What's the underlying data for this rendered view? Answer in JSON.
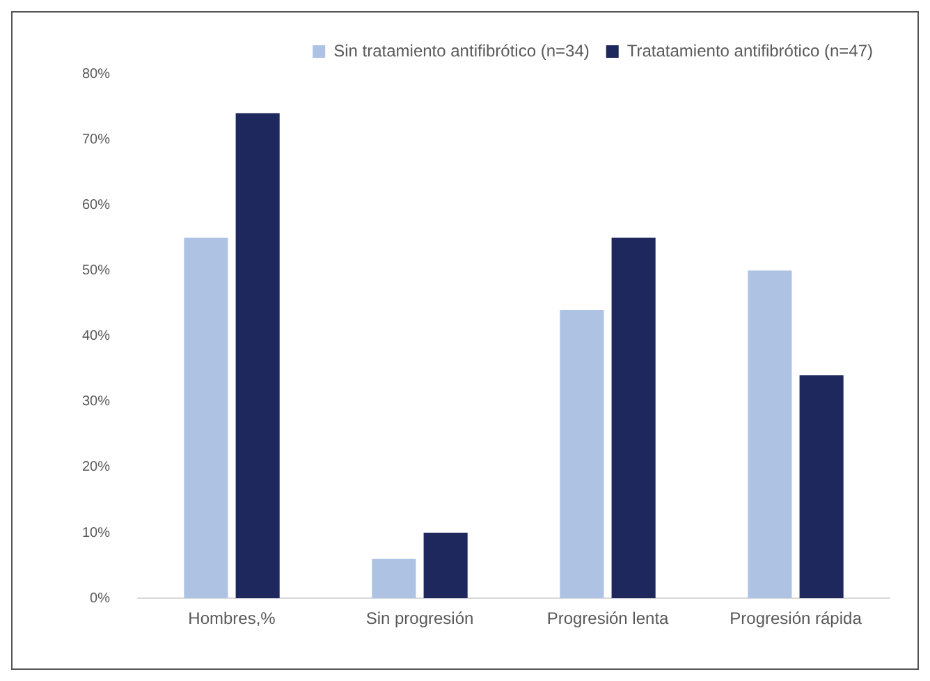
{
  "chart_data": {
    "type": "bar",
    "categories": [
      "Hombres,%",
      "Sin progresión",
      "Progresión lenta",
      "Progresión rápida"
    ],
    "series": [
      {
        "name": "Sin tratamiento antifibrótico (n=34)",
        "color": "#aec3e3",
        "values": [
          55,
          6,
          44,
          50
        ]
      },
      {
        "name": "Tratatamiento antifibrótico (n=47)",
        "color": "#1f285c",
        "values": [
          74,
          10,
          55,
          34
        ]
      }
    ],
    "ylim": [
      0,
      80
    ],
    "yticks": [
      {
        "value": 0,
        "label": "0%"
      },
      {
        "value": 10,
        "label": "10%"
      },
      {
        "value": 20,
        "label": "20%"
      },
      {
        "value": 30,
        "label": "30%"
      },
      {
        "value": 40,
        "label": "40%"
      },
      {
        "value": 50,
        "label": "50%"
      },
      {
        "value": 60,
        "label": "60%"
      },
      {
        "value": 70,
        "label": "70%"
      },
      {
        "value": 80,
        "label": "80%"
      }
    ],
    "grid": false,
    "legend": "top right"
  }
}
